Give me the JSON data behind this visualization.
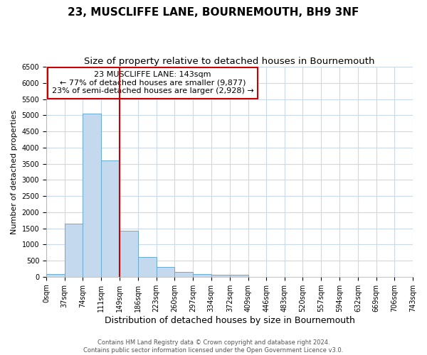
{
  "title": "23, MUSCLIFFE LANE, BOURNEMOUTH, BH9 3NF",
  "subtitle": "Size of property relative to detached houses in Bournemouth",
  "xlabel": "Distribution of detached houses by size in Bournemouth",
  "ylabel": "Number of detached properties",
  "bin_edges": [
    0,
    37,
    74,
    111,
    149,
    186,
    223,
    260,
    297,
    334,
    372,
    409,
    446,
    483,
    520,
    557,
    594,
    632,
    669,
    706,
    743
  ],
  "bar_heights": [
    75,
    1650,
    5050,
    3600,
    1430,
    610,
    300,
    150,
    75,
    50,
    50,
    0,
    0,
    0,
    0,
    0,
    0,
    0,
    0,
    0
  ],
  "bar_color": "#c5d9ee",
  "bar_edge_color": "#6aaad4",
  "vline_x": 149,
  "vline_color": "#cc0000",
  "ylim": [
    0,
    6500
  ],
  "yticks": [
    0,
    500,
    1000,
    1500,
    2000,
    2500,
    3000,
    3500,
    4000,
    4500,
    5000,
    5500,
    6000,
    6500
  ],
  "annotation_text": "23 MUSCLIFFE LANE: 143sqm\n← 77% of detached houses are smaller (9,877)\n23% of semi-detached houses are larger (2,928) →",
  "annotation_box_color": "#cc0000",
  "footer_line1": "Contains HM Land Registry data © Crown copyright and database right 2024.",
  "footer_line2": "Contains public sector information licensed under the Open Government Licence v3.0.",
  "bg_color": "#ffffff",
  "grid_color": "#ccd9e8",
  "title_fontsize": 11,
  "subtitle_fontsize": 9.5,
  "xlabel_fontsize": 9,
  "ylabel_fontsize": 8,
  "tick_fontsize": 7,
  "annotation_fontsize": 8,
  "footer_fontsize": 6
}
